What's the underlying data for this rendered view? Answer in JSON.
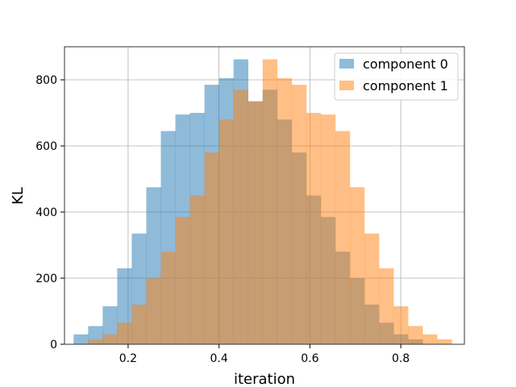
{
  "chart_data": {
    "type": "bar",
    "xlabel": "iteration",
    "ylabel": "KL",
    "xlim": [
      0.06,
      0.94
    ],
    "ylim": [
      0,
      900
    ],
    "xticks": [
      "0.2",
      "0.4",
      "0.6",
      "0.8"
    ],
    "yticks": [
      "0",
      "200",
      "400",
      "600",
      "800"
    ],
    "grid": true,
    "legend_position": "top-right",
    "bin_edges": [
      0.08,
      0.112,
      0.144,
      0.176,
      0.208,
      0.24,
      0.272,
      0.304,
      0.336,
      0.368,
      0.4,
      0.432,
      0.464,
      0.496,
      0.528,
      0.56,
      0.592,
      0.624,
      0.656,
      0.688,
      0.72,
      0.752,
      0.784,
      0.816,
      0.848,
      0.88,
      0.912
    ],
    "series": [
      {
        "name": "component 0",
        "color": "#1f77b4",
        "values": [
          30,
          55,
          115,
          230,
          335,
          475,
          645,
          695,
          700,
          785,
          805,
          862,
          735,
          770,
          680,
          580,
          450,
          385,
          280,
          200,
          120,
          65,
          30,
          15,
          0,
          0
        ]
      },
      {
        "name": "component 1",
        "color": "#ff7f0e",
        "values": [
          0,
          15,
          30,
          65,
          120,
          200,
          280,
          385,
          450,
          580,
          680,
          770,
          735,
          862,
          805,
          785,
          700,
          695,
          645,
          475,
          335,
          230,
          115,
          55,
          30,
          15
        ]
      }
    ]
  }
}
